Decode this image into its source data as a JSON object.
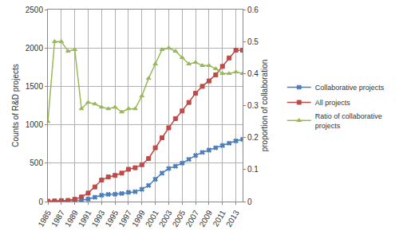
{
  "chart_data": {
    "type": "line",
    "ylabel": "Counts of R&D projects",
    "y2label": "proportion of collaboration",
    "x": [
      1985,
      1986,
      1987,
      1988,
      1989,
      1990,
      1991,
      1992,
      1993,
      1994,
      1995,
      1996,
      1997,
      1998,
      1999,
      2000,
      2001,
      2002,
      2003,
      2004,
      2005,
      2006,
      2007,
      2008,
      2009,
      2010,
      2011,
      2012,
      2013,
      2014
    ],
    "series": [
      {
        "name": "Collaborative projects",
        "color": "#4a7ebb",
        "marker": "x",
        "values": [
          1,
          4,
          6,
          7,
          14,
          18,
          32,
          56,
          82,
          93,
          95,
          105,
          120,
          128,
          160,
          210,
          290,
          370,
          430,
          460,
          500,
          550,
          600,
          640,
          670,
          700,
          730,
          760,
          790,
          810
        ]
      },
      {
        "name": "All projects",
        "color": "#be4b48",
        "marker": "square",
        "values": [
          5,
          8,
          12,
          15,
          30,
          60,
          110,
          190,
          280,
          320,
          340,
          370,
          420,
          440,
          480,
          560,
          700,
          830,
          960,
          1080,
          1180,
          1290,
          1410,
          1500,
          1570,
          1650,
          1760,
          1870,
          1970,
          1970
        ]
      },
      {
        "name": "Ratio of collaborative projects",
        "color": "#98b954",
        "marker": "triangle-up",
        "axis": "y2",
        "values": [
          0.25,
          0.5,
          0.5,
          0.47,
          0.475,
          0.29,
          0.31,
          0.305,
          0.295,
          0.29,
          0.295,
          0.28,
          0.29,
          0.29,
          0.33,
          0.385,
          0.43,
          0.475,
          0.48,
          0.47,
          0.45,
          0.43,
          0.435,
          0.425,
          0.425,
          0.415,
          0.4,
          0.4,
          0.405,
          0.4
        ]
      }
    ],
    "xlim": [
      1985,
      2014
    ],
    "xticks": [
      1985,
      1987,
      1989,
      1991,
      1993,
      1995,
      1997,
      1999,
      2001,
      2003,
      2005,
      2007,
      2009,
      2011,
      2013
    ],
    "ylim": [
      0,
      2500
    ],
    "yticks": [
      0,
      500,
      1000,
      1500,
      2000,
      2500
    ],
    "y2lim": [
      0,
      0.6
    ],
    "y2ticks": [
      0,
      0.1,
      0.2,
      0.3,
      0.4,
      0.5,
      0.6
    ],
    "grid": true,
    "legend": "right"
  }
}
